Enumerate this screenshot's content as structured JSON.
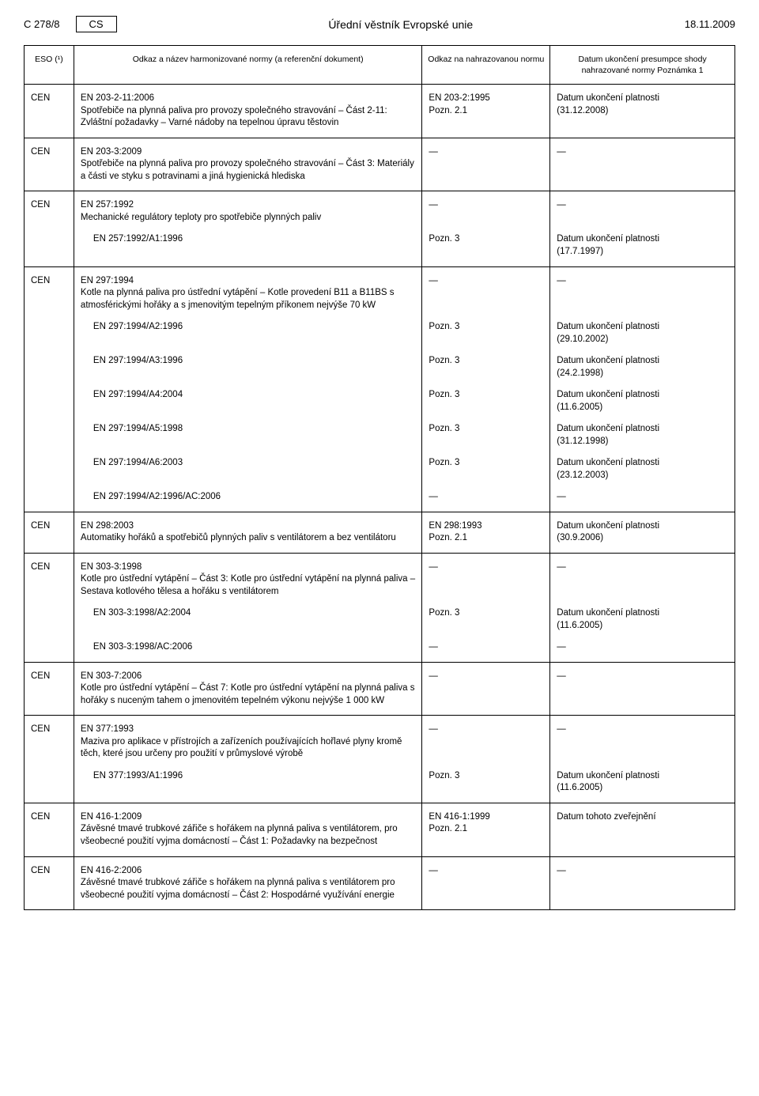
{
  "header": {
    "page_ref": "C 278/8",
    "lang": "CS",
    "title": "Úřední věstník Evropské unie",
    "date": "18.11.2009"
  },
  "columns": {
    "eso": "ESO (¹)",
    "ref": "Odkaz a název harmonizované normy\n(a referenční dokument)",
    "sup": "Odkaz na nahrazovanou normu",
    "date": "Datum ukončení presumpce shody nahrazované normy\nPoznámka 1"
  },
  "dash": "—",
  "groups": [
    {
      "eso": "CEN",
      "rows": [
        {
          "ref": "EN 203-2-11:2006\nSpotřebiče na plynná paliva pro provozy společného stravování – Část 2-11: Zvláštní požadavky – Varné nádoby na tepelnou úpravu těstovin",
          "sup": "EN 203-2:1995\nPozn. 2.1",
          "date": "Datum ukončení platnosti\n(31.12.2008)"
        }
      ]
    },
    {
      "eso": "CEN",
      "rows": [
        {
          "ref": "EN 203-3:2009\nSpotřebiče na plynná paliva pro provozy společného stravování – Část 3: Materiály a části ve styku s potravinami a jiná hygienická hlediska",
          "sup": "—",
          "date": "—"
        }
      ]
    },
    {
      "eso": "CEN",
      "rows": [
        {
          "ref": "EN 257:1992\nMechanické regulátory teploty pro spotřebiče plynných paliv",
          "sup": "—",
          "date": "—"
        },
        {
          "ref": "EN 257:1992/A1:1996",
          "indent": true,
          "sup": "Pozn. 3",
          "date": "Datum ukončení platnosti\n(17.7.1997)"
        }
      ]
    },
    {
      "eso": "CEN",
      "rows": [
        {
          "ref": "EN 297:1994\nKotle na plynná paliva pro ústřední vytápění – Kotle provedení B11 a B11BS s atmosférickými hořáky a s jmenovitým tepelným příkonem nejvýše 70 kW",
          "sup": "—",
          "date": "—"
        },
        {
          "ref": "EN 297:1994/A2:1996",
          "indent": true,
          "sup": "Pozn. 3",
          "date": "Datum ukončení platnosti\n(29.10.2002)"
        },
        {
          "ref": "EN 297:1994/A3:1996",
          "indent": true,
          "sup": "Pozn. 3",
          "date": "Datum ukončení platnosti\n(24.2.1998)"
        },
        {
          "ref": "EN 297:1994/A4:2004",
          "indent": true,
          "sup": "Pozn. 3",
          "date": "Datum ukončení platnosti\n(11.6.2005)"
        },
        {
          "ref": "EN 297:1994/A5:1998",
          "indent": true,
          "sup": "Pozn. 3",
          "date": "Datum ukončení platnosti\n(31.12.1998)"
        },
        {
          "ref": "EN 297:1994/A6:2003",
          "indent": true,
          "sup": "Pozn. 3",
          "date": "Datum ukončení platnosti\n(23.12.2003)"
        },
        {
          "ref": "EN 297:1994/A2:1996/AC:2006",
          "indent": true,
          "sup": "—",
          "date": "—"
        }
      ]
    },
    {
      "eso": "CEN",
      "rows": [
        {
          "ref": "EN 298:2003\nAutomatiky hořáků a spotřebičů plynných paliv s ventilátorem a bez ventilátoru",
          "sup": "EN 298:1993\nPozn. 2.1",
          "date": "Datum ukončení platnosti\n(30.9.2006)"
        }
      ]
    },
    {
      "eso": "CEN",
      "rows": [
        {
          "ref": "EN 303-3:1998\nKotle pro ústřední vytápění – Část 3: Kotle pro ústřední vytápění na plynná paliva – Sestava kotlového tělesa a hořáku s ventilátorem",
          "sup": "—",
          "date": "—"
        },
        {
          "ref": "EN 303-3:1998/A2:2004",
          "indent": true,
          "sup": "Pozn. 3",
          "date": "Datum ukončení platnosti\n(11.6.2005)"
        },
        {
          "ref": "EN 303-3:1998/AC:2006",
          "indent": true,
          "sup": "—",
          "date": "—"
        }
      ]
    },
    {
      "eso": "CEN",
      "rows": [
        {
          "ref": "EN 303-7:2006\nKotle pro ústřední vytápění – Část 7: Kotle pro ústřední vytápění na plynná paliva s hořáky s nuceným tahem o jmenovitém tepelném výkonu nejvýše 1 000 kW",
          "sup": "—",
          "date": "—"
        }
      ]
    },
    {
      "eso": "CEN",
      "rows": [
        {
          "ref": "EN 377:1993\nMaziva pro aplikace v přístrojích a zařízeních používajících hořlavé plyny kromě těch, které jsou určeny pro použití v průmyslové výrobě",
          "sup": "—",
          "date": "—"
        },
        {
          "ref": "EN 377:1993/A1:1996",
          "indent": true,
          "sup": "Pozn. 3",
          "date": "Datum ukončení platnosti\n(11.6.2005)"
        }
      ]
    },
    {
      "eso": "CEN",
      "rows": [
        {
          "ref": "EN 416-1:2009\nZávěsné tmavé trubkové zářiče s hořákem na plynná paliva s ventilátorem, pro všeobecné použití vyjma domácností – Část 1: Požadavky na bezpečnost",
          "sup": "EN 416-1:1999\nPozn. 2.1",
          "date": "Datum tohoto zveřejnění"
        }
      ]
    },
    {
      "eso": "CEN",
      "rows": [
        {
          "ref": "EN 416-2:2006\nZávěsné tmavé trubkové zářiče s hořákem na plynná paliva s ventilátorem pro všeobecné použití vyjma domácností – Část 2: Hospodárné využívání energie",
          "sup": "—",
          "date": "—"
        }
      ]
    }
  ]
}
